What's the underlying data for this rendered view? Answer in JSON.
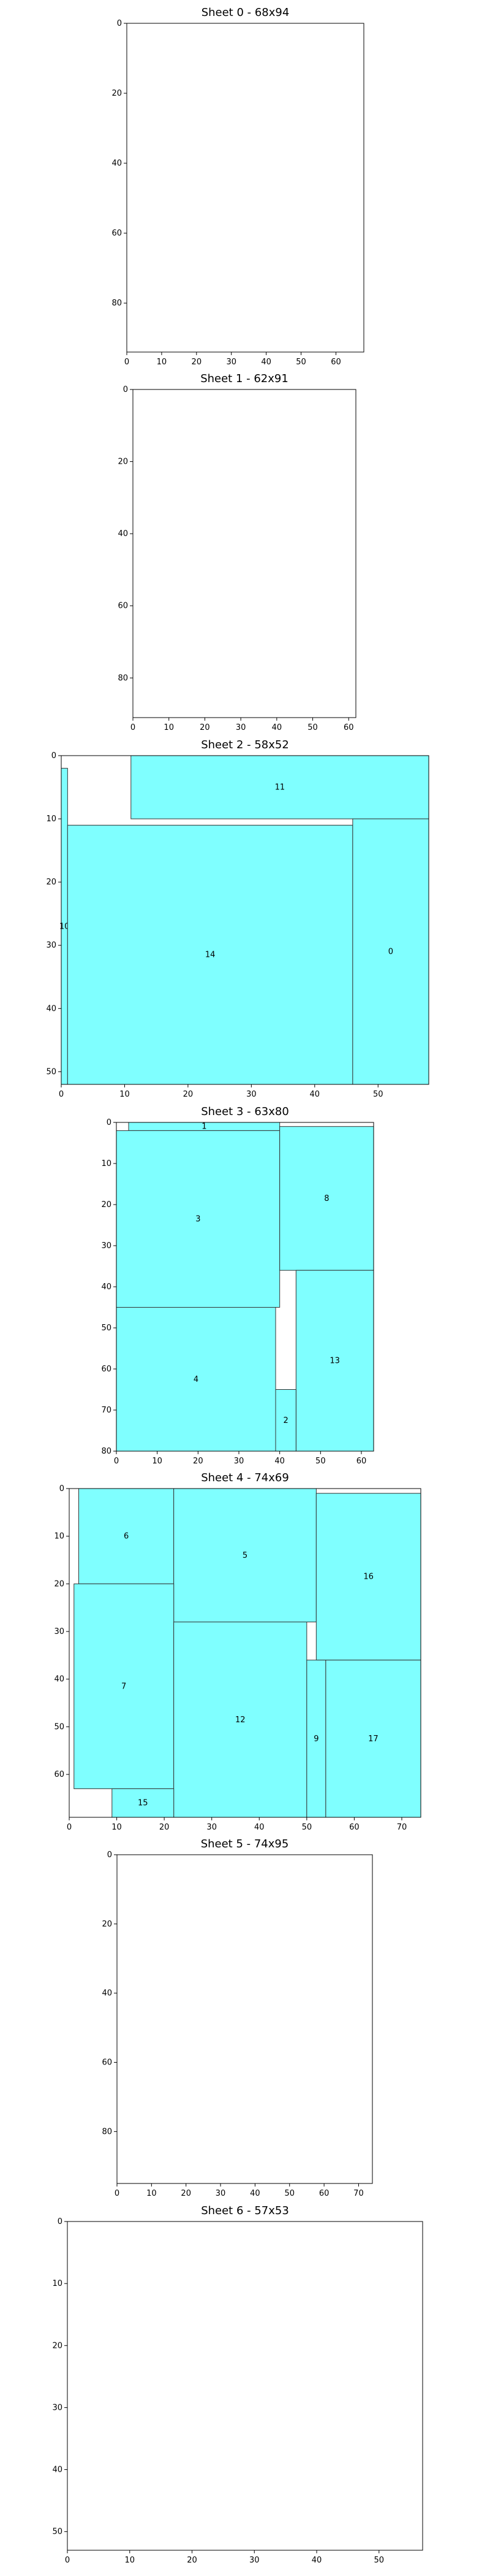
{
  "chart_data": [
    {
      "type": "rectangle-packing",
      "title": "Sheet 0 - 68x94",
      "xlim": [
        0,
        68
      ],
      "ylim": [
        0,
        94
      ],
      "y_inverted": true,
      "xticks": [
        0,
        10,
        20,
        30,
        40,
        50,
        60
      ],
      "yticks": [
        0,
        20,
        40,
        60,
        80
      ],
      "fill_color": "#7fffff",
      "rects": []
    },
    {
      "type": "rectangle-packing",
      "title": "Sheet 1 - 62x91",
      "xlim": [
        0,
        62
      ],
      "ylim": [
        0,
        91
      ],
      "y_inverted": true,
      "xticks": [
        0,
        10,
        20,
        30,
        40,
        50,
        60
      ],
      "yticks": [
        0,
        20,
        40,
        60,
        80
      ],
      "fill_color": "#7fffff",
      "rects": []
    },
    {
      "type": "rectangle-packing",
      "title": "Sheet 2 - 58x52",
      "xlim": [
        0,
        58
      ],
      "ylim": [
        0,
        52
      ],
      "y_inverted": true,
      "xticks": [
        0,
        10,
        20,
        30,
        40,
        50
      ],
      "yticks": [
        0,
        10,
        20,
        30,
        40,
        50
      ],
      "fill_color": "#7fffff",
      "rects": [
        {
          "label": "11",
          "x": 11,
          "y": 0,
          "w": 47,
          "h": 10
        },
        {
          "label": "10",
          "x": 0,
          "y": 2,
          "w": 1,
          "h": 50
        },
        {
          "label": "14",
          "x": 1,
          "y": 11,
          "w": 45,
          "h": 41
        },
        {
          "label": "0",
          "x": 46,
          "y": 10,
          "w": 12,
          "h": 42
        }
      ]
    },
    {
      "type": "rectangle-packing",
      "title": "Sheet 3 - 63x80",
      "xlim": [
        0,
        63
      ],
      "ylim": [
        0,
        80
      ],
      "y_inverted": true,
      "xticks": [
        0,
        10,
        20,
        30,
        40,
        50,
        60
      ],
      "yticks": [
        0,
        10,
        20,
        30,
        40,
        50,
        60,
        70,
        80
      ],
      "fill_color": "#7fffff",
      "rects": [
        {
          "label": "1",
          "x": 3,
          "y": 0,
          "w": 37,
          "h": 2
        },
        {
          "label": "3",
          "x": 0,
          "y": 2,
          "w": 40,
          "h": 43
        },
        {
          "label": "8",
          "x": 40,
          "y": 1,
          "w": 23,
          "h": 35
        },
        {
          "label": "4",
          "x": 0,
          "y": 45,
          "w": 39,
          "h": 35
        },
        {
          "label": "13",
          "x": 44,
          "y": 36,
          "w": 19,
          "h": 44
        },
        {
          "label": "2",
          "x": 39,
          "y": 65,
          "w": 5,
          "h": 15
        }
      ]
    },
    {
      "type": "rectangle-packing",
      "title": "Sheet 4 - 74x69",
      "xlim": [
        0,
        74
      ],
      "ylim": [
        0,
        69
      ],
      "y_inverted": true,
      "xticks": [
        0,
        10,
        20,
        30,
        40,
        50,
        60,
        70
      ],
      "yticks": [
        0,
        10,
        20,
        30,
        40,
        50,
        60
      ],
      "fill_color": "#7fffff",
      "rects": [
        {
          "label": "6",
          "x": 2,
          "y": 0,
          "w": 20,
          "h": 20
        },
        {
          "label": "5",
          "x": 22,
          "y": 0,
          "w": 30,
          "h": 28
        },
        {
          "label": "16",
          "x": 52,
          "y": 1,
          "w": 22,
          "h": 35
        },
        {
          "label": "7",
          "x": 1,
          "y": 20,
          "w": 21,
          "h": 43
        },
        {
          "label": "12",
          "x": 22,
          "y": 28,
          "w": 28,
          "h": 41
        },
        {
          "label": "9",
          "x": 50,
          "y": 36,
          "w": 4,
          "h": 33
        },
        {
          "label": "17",
          "x": 54,
          "y": 36,
          "w": 20,
          "h": 33
        },
        {
          "label": "15",
          "x": 9,
          "y": 63,
          "w": 13,
          "h": 6
        }
      ]
    },
    {
      "type": "rectangle-packing",
      "title": "Sheet 5 - 74x95",
      "xlim": [
        0,
        74
      ],
      "ylim": [
        0,
        95
      ],
      "y_inverted": true,
      "xticks": [
        0,
        10,
        20,
        30,
        40,
        50,
        60,
        70
      ],
      "yticks": [
        0,
        20,
        40,
        60,
        80
      ],
      "fill_color": "#7fffff",
      "rects": []
    },
    {
      "type": "rectangle-packing",
      "title": "Sheet 6 - 57x53",
      "xlim": [
        0,
        57
      ],
      "ylim": [
        0,
        53
      ],
      "y_inverted": true,
      "xticks": [
        0,
        10,
        20,
        30,
        40,
        50
      ],
      "yticks": [
        0,
        10,
        20,
        30,
        40,
        50
      ],
      "fill_color": "#7fffff",
      "rects": []
    }
  ]
}
